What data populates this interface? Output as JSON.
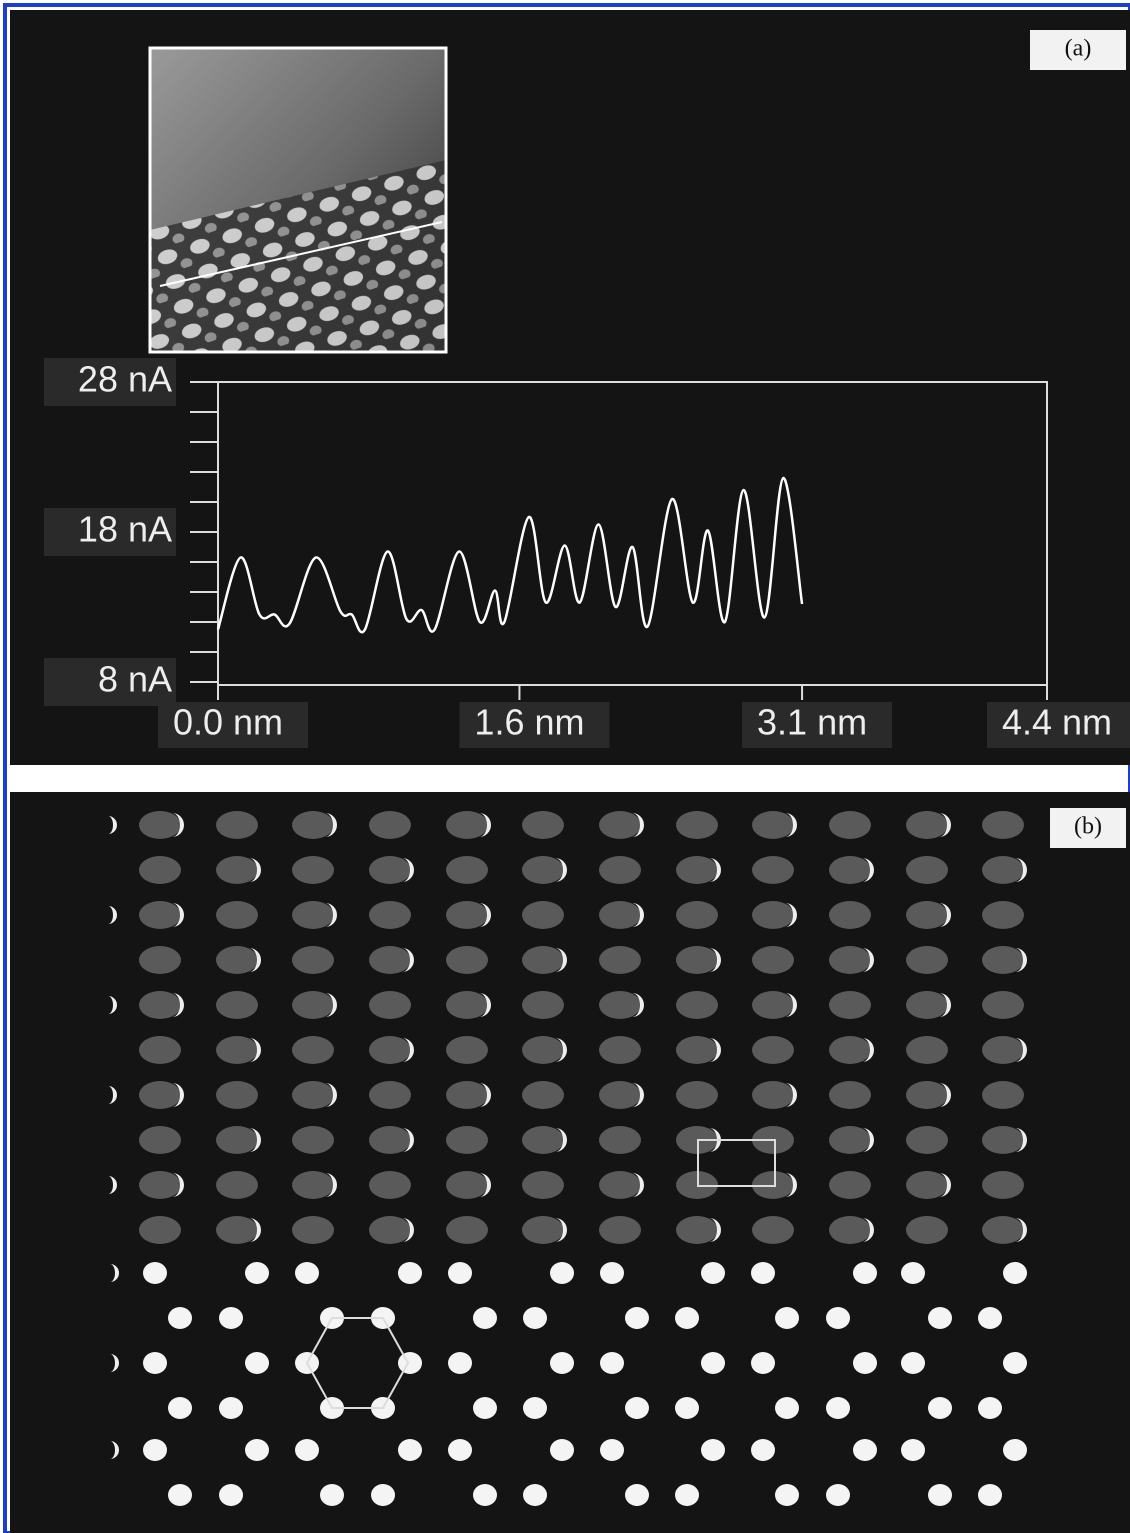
{
  "panel_labels": [
    "(a)",
    "(b)"
  ],
  "chart_data": {
    "type": "line",
    "x": [
      0.0,
      0.12,
      0.22,
      0.3,
      0.38,
      0.52,
      0.65,
      0.71,
      0.78,
      0.9,
      1.0,
      1.08,
      1.15,
      1.28,
      1.39,
      1.47,
      1.52,
      1.65,
      1.74,
      1.84,
      1.92,
      2.02,
      2.11,
      2.2,
      2.28,
      2.41,
      2.52,
      2.6,
      2.69,
      2.79,
      2.9,
      3.0,
      3.1
    ],
    "values": [
      11.5,
      16.3,
      12.5,
      12.5,
      11.9,
      16.3,
      12.7,
      12.5,
      11.5,
      16.7,
      12.2,
      12.8,
      11.5,
      16.7,
      12.0,
      14.1,
      12.0,
      19.0,
      13.3,
      17.1,
      13.3,
      18.5,
      13.0,
      17.0,
      11.7,
      20.2,
      13.3,
      18.1,
      12.0,
      20.8,
      12.3,
      21.6,
      13.2
    ],
    "color": "#ffffff",
    "xlim": [
      0,
      4.4
    ],
    "xticks": [
      {
        "value": 0,
        "label": "0.0 nm"
      },
      {
        "value": 1.6,
        "label": "1.6 nm"
      },
      {
        "value": 3.1,
        "label": "3.1 nm"
      },
      {
        "value": 4.4,
        "label": "4.4 nm"
      }
    ],
    "ylim": [
      8,
      28
    ],
    "yticks": [
      {
        "value": 8,
        "label": "8 nA"
      },
      {
        "value": 18,
        "label": "18 nA"
      },
      {
        "value": 28,
        "label": "28 nA"
      }
    ],
    "yticks_minor": [
      10,
      12,
      14,
      16,
      20,
      22,
      24,
      26
    ]
  }
}
